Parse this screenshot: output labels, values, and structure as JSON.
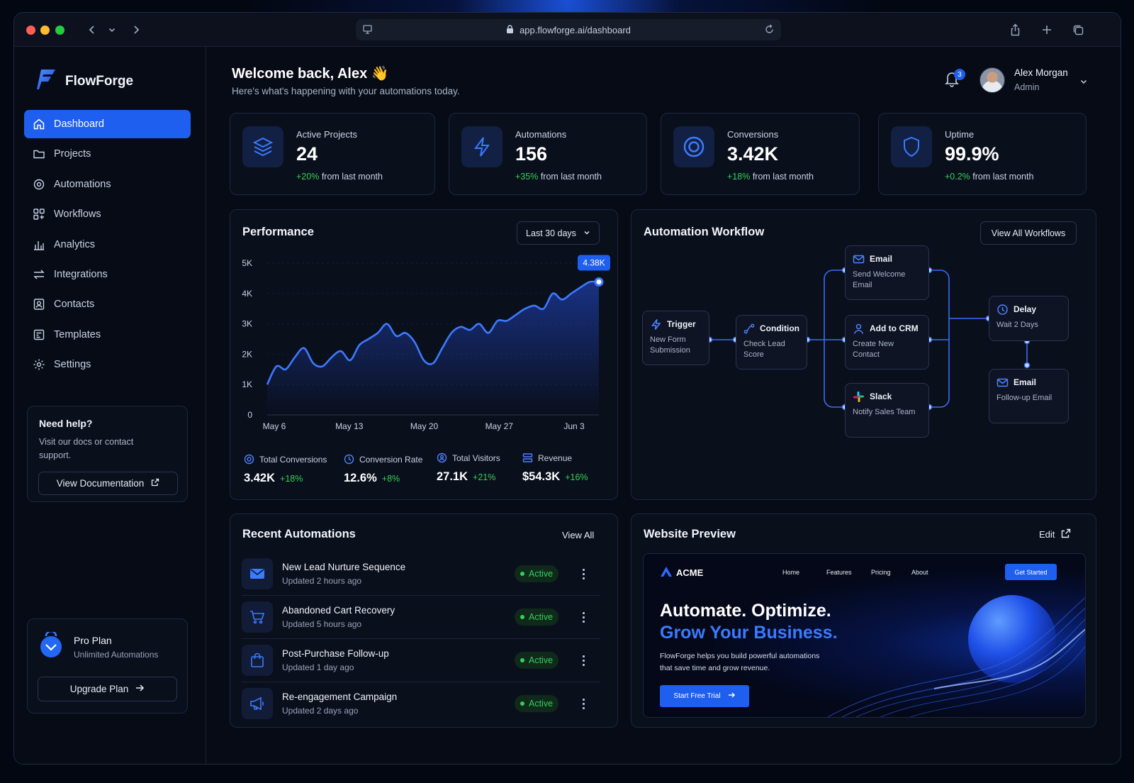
{
  "browser": {
    "url": "app.flowforge.ai/dashboard"
  },
  "brand": {
    "name": "FlowForge"
  },
  "sidebar": {
    "items": [
      {
        "label": "Dashboard",
        "icon": "home-icon",
        "active": true
      },
      {
        "label": "Projects",
        "icon": "folder-icon"
      },
      {
        "label": "Automations",
        "icon": "automation-icon"
      },
      {
        "label": "Workflows",
        "icon": "workflow-icon"
      },
      {
        "label": "Analytics",
        "icon": "bar-chart-icon"
      },
      {
        "label": "Integrations",
        "icon": "arrows-icon"
      },
      {
        "label": "Contacts",
        "icon": "contact-icon"
      },
      {
        "label": "Templates",
        "icon": "template-icon"
      },
      {
        "label": "Settings",
        "icon": "gear-icon"
      }
    ],
    "help": {
      "title": "Need help?",
      "text": "Visit our docs or contact support.",
      "button": "View Documentation"
    },
    "plan": {
      "title": "Pro Plan",
      "subtitle": "Unlimited Automations",
      "button": "Upgrade Plan"
    }
  },
  "header": {
    "greeting": "Welcome back, Alex 👋",
    "subtitle": "Here's what's happening with your automations today.",
    "notifications": "3",
    "user_name": "Alex Morgan",
    "user_role": "Admin"
  },
  "stats": [
    {
      "label": "Active Projects",
      "value": "24",
      "change": "+20%",
      "suffix": "from last month",
      "icon": "layers-icon"
    },
    {
      "label": "Automations",
      "value": "156",
      "change": "+35%",
      "suffix": "from last month",
      "icon": "bolt-icon"
    },
    {
      "label": "Conversions",
      "value": "3.42K",
      "change": "+18%",
      "suffix": "from last month",
      "icon": "target-icon"
    },
    {
      "label": "Uptime",
      "value": "99.9%",
      "change": "+0.2%",
      "suffix": "from last month",
      "icon": "shield-icon"
    }
  ],
  "performance": {
    "title": "Performance",
    "range": "Last 30 days",
    "metrics": [
      {
        "label": "Total Conversions",
        "value": "3.42K",
        "change": "+18%"
      },
      {
        "label": "Conversion Rate",
        "value": "12.6%",
        "change": "+8%"
      },
      {
        "label": "Total Visitors",
        "value": "27.1K",
        "change": "+21%"
      },
      {
        "label": "Revenue",
        "value": "$54.3K",
        "change": "+16%"
      }
    ]
  },
  "chart_data": {
    "type": "area",
    "title": "Performance",
    "x_ticks": [
      "May 6",
      "May 13",
      "May 20",
      "May 27",
      "Jun 3"
    ],
    "y_ticks": [
      "0",
      "1K",
      "2K",
      "3K",
      "4K",
      "5K"
    ],
    "ylim": [
      0,
      5000
    ],
    "x": [
      0,
      0.8,
      1.6,
      2.4,
      3.2,
      4,
      4.8,
      5.6,
      6.4,
      7.2,
      8,
      8.8,
      9.6,
      10.4,
      11.2,
      12,
      12.8,
      13.6,
      14.4,
      15.2,
      16,
      16.8,
      17.6,
      18.4,
      19.2,
      20,
      20.8,
      21.6,
      22.4,
      23.2,
      24,
      24.8,
      25.6,
      26.4,
      27.2,
      28,
      28.8
    ],
    "values": [
      1000,
      1600,
      1500,
      1900,
      2200,
      1700,
      1600,
      1900,
      2100,
      1800,
      2300,
      2500,
      2700,
      3000,
      2600,
      2700,
      2400,
      1800,
      1700,
      2200,
      2700,
      2900,
      2800,
      3000,
      2700,
      3100,
      3100,
      3300,
      3500,
      3600,
      3500,
      4000,
      3800,
      4000,
      4200,
      4380,
      4380
    ],
    "highlight": {
      "label": "4.38K",
      "value": 4380
    },
    "grid": true,
    "legend": "none"
  },
  "workflow": {
    "title": "Automation Workflow",
    "button": "View All Workflows",
    "nodes": [
      {
        "title": "Trigger",
        "text": "New Form Submission",
        "icon": "bolt-icon"
      },
      {
        "title": "Condition",
        "text": "Check Lead Score",
        "icon": "branch-icon"
      },
      {
        "title": "Email",
        "text": "Send Welcome Email",
        "icon": "mail-icon"
      },
      {
        "title": "Add to CRM",
        "text": "Create New Contact",
        "icon": "user-icon"
      },
      {
        "title": "Slack",
        "text": "Notify Sales Team",
        "icon": "slack-icon"
      },
      {
        "title": "Delay",
        "text": "Wait 2 Days",
        "icon": "clock-icon"
      },
      {
        "title": "Email",
        "text": "Follow-up Email",
        "icon": "mail-icon"
      }
    ]
  },
  "recent": {
    "title": "Recent Automations",
    "view_all": "View All",
    "items": [
      {
        "name": "New Lead Nurture Sequence",
        "updated": "Updated 2 hours ago",
        "status": "Active",
        "icon": "mail-icon"
      },
      {
        "name": "Abandoned Cart Recovery",
        "updated": "Updated 5 hours ago",
        "status": "Active",
        "icon": "cart-icon"
      },
      {
        "name": "Post-Purchase Follow-up",
        "updated": "Updated 1 day ago",
        "status": "Active",
        "icon": "bag-icon"
      },
      {
        "name": "Re-engagement Campaign",
        "updated": "Updated 2 days ago",
        "status": "Active",
        "icon": "megaphone-icon"
      }
    ]
  },
  "preview": {
    "title": "Website Preview",
    "edit": "Edit",
    "site": {
      "logo": "ACME",
      "nav": [
        "Home",
        "Features",
        "Pricing",
        "About"
      ],
      "cta": "Get Started",
      "headline1": "Automate. Optimize.",
      "headline2": "Grow Your Business.",
      "body": "FlowForge helps you build powerful automations that save time and grow revenue.",
      "button": "Start Free Trial"
    }
  },
  "colors": {
    "accent": "#1f5ff0",
    "positive": "#34d058",
    "bg": "#070b16"
  }
}
